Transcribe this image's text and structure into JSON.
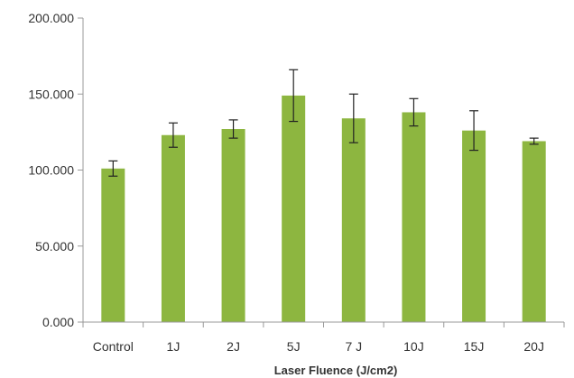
{
  "chart_data": {
    "type": "bar",
    "title": "",
    "xlabel": "Laser Fluence (J/cm2)",
    "ylabel": "",
    "categories": [
      "Control",
      "1J",
      "2J",
      "5J",
      "7 J",
      "10J",
      "15J",
      "20J"
    ],
    "series": [
      {
        "values": [
          101,
          123,
          127,
          149,
          134,
          138,
          126,
          119
        ],
        "error": [
          5,
          8,
          6,
          17,
          16,
          9,
          13,
          2
        ],
        "color": "#8db640"
      }
    ],
    "ylim": [
      0,
      200
    ],
    "yticks": [
      0,
      50,
      100,
      150,
      200
    ],
    "ytick_labels": [
      "0.000",
      "50.000",
      "100.000",
      "150.000",
      "200.000"
    ],
    "grid": false,
    "legend": "none",
    "axis_color": "#999999",
    "error_bar_color": "#222222"
  }
}
